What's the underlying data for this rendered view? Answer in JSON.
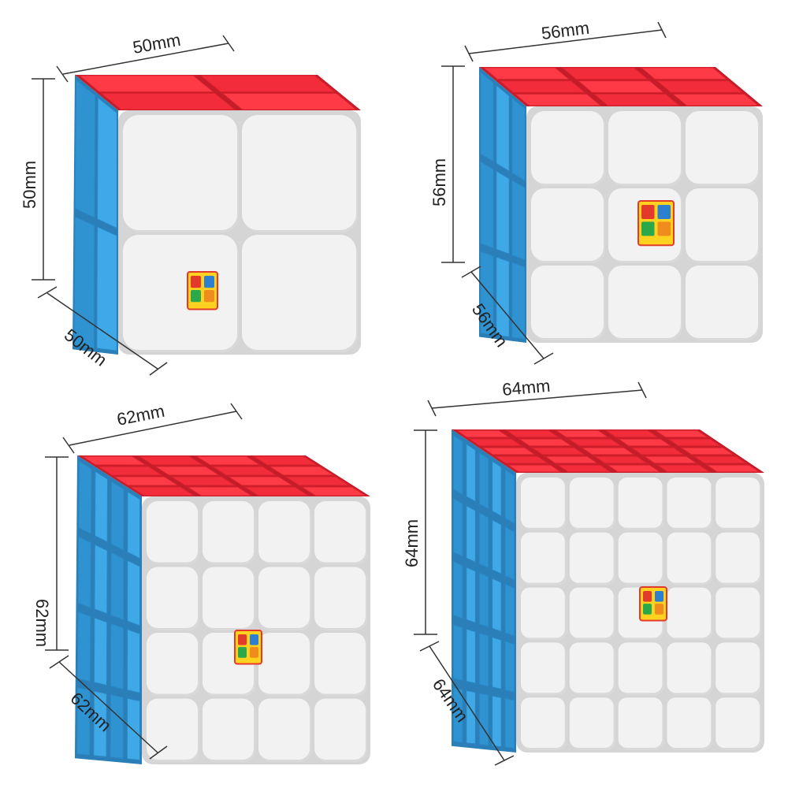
{
  "colors": {
    "top": "#f22c3a",
    "top_light": "#ff3a47",
    "left": "#3fa9e8",
    "left_dark": "#2f93d2",
    "front": "#f2f2f2",
    "front_shadow": "#d9d9d9",
    "gap": "#d5d5d5",
    "dimension_line": "#333333"
  },
  "cubes": [
    {
      "name": "2x2 cube",
      "layers": 2,
      "logo": "logo-mark",
      "dims": {
        "top": "50mm",
        "side": "50mm",
        "depth": "50mm"
      }
    },
    {
      "name": "3x3 cube",
      "layers": 3,
      "logo": "logo-mark",
      "dims": {
        "top": "56mm",
        "side": "56mm",
        "depth": "56mm"
      }
    },
    {
      "name": "4x4 cube",
      "layers": 4,
      "logo": "logo-mark",
      "dims": {
        "top": "62mm",
        "side": "62mm",
        "depth": "62mm"
      }
    },
    {
      "name": "5x5 cube",
      "layers": 5,
      "logo": "logo-mark",
      "dims": {
        "top": "64mm",
        "side": "64mm",
        "depth": "64mm"
      }
    }
  ]
}
